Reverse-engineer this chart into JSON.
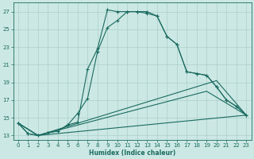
{
  "xlabel": "Humidex (Indice chaleur)",
  "bg_color": "#cce8e4",
  "grid_color": "#aacfca",
  "line_color": "#1a6b60",
  "xlim": [
    -0.5,
    23.5
  ],
  "ylim": [
    12.5,
    28.0
  ],
  "yticks": [
    13,
    15,
    17,
    19,
    21,
    23,
    25,
    27
  ],
  "xticks": [
    0,
    1,
    2,
    3,
    4,
    5,
    6,
    7,
    8,
    9,
    10,
    11,
    12,
    13,
    14,
    15,
    16,
    17,
    18,
    19,
    20,
    21,
    22,
    23
  ],
  "line1_x": [
    0,
    1,
    2,
    3,
    4,
    5,
    6,
    7,
    8,
    9,
    10,
    11,
    12,
    13,
    14,
    15,
    16,
    17,
    18,
    19,
    20,
    21,
    22,
    23
  ],
  "line1_y": [
    14.4,
    13.2,
    13.0,
    13.3,
    13.5,
    14.2,
    15.5,
    17.2,
    22.5,
    25.2,
    26.0,
    27.0,
    27.0,
    27.0,
    26.5,
    24.2,
    23.3,
    20.2,
    20.0,
    19.8,
    18.5,
    17.0,
    16.3,
    15.3
  ],
  "line2_x": [
    0,
    1,
    2,
    3,
    4,
    5,
    6,
    7,
    8,
    9,
    10,
    11,
    12,
    13,
    14,
    15,
    16,
    17,
    18,
    19,
    20,
    21,
    22,
    23
  ],
  "line2_y": [
    14.4,
    13.2,
    13.0,
    13.3,
    13.5,
    14.2,
    14.5,
    20.5,
    22.8,
    27.2,
    27.0,
    27.0,
    27.0,
    26.8,
    26.5,
    24.2,
    23.3,
    20.2,
    20.0,
    19.8,
    18.5,
    17.0,
    16.3,
    15.3
  ],
  "line3_x": [
    0,
    2,
    23
  ],
  "line3_y": [
    14.4,
    13.0,
    15.3
  ],
  "line4_x": [
    0,
    2,
    20,
    23
  ],
  "line4_y": [
    14.4,
    13.0,
    19.2,
    15.3
  ],
  "line5_x": [
    0,
    2,
    19,
    23
  ],
  "line5_y": [
    14.4,
    13.0,
    18.0,
    15.3
  ]
}
